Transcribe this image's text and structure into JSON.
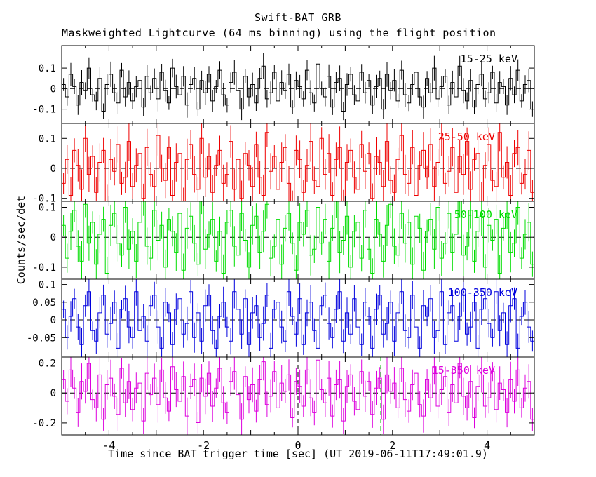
{
  "chart_data": {
    "type": "line",
    "title": "Swift-BAT GRB",
    "subtitle": "Maskweighted Lightcurve (64 ms binning) using the flight position",
    "xlabel": "Time since BAT trigger time [sec] (UT 2019-06-11T17:49:01.9)",
    "ylabel": "Counts/sec/det",
    "x_range": [
      -5,
      5
    ],
    "x_ticks": [
      -4,
      -2,
      0,
      2,
      4
    ],
    "bin_seconds": 0.064,
    "axis_color": "#000000",
    "background": "#ffffff",
    "panels": [
      {
        "label": "15-25 keV",
        "color": "#000000",
        "ylim": [
          -0.17,
          0.21
        ],
        "yticks": [
          0.1,
          0,
          -0.1
        ],
        "err": 0.045,
        "value_scale": 0.01,
        "values": "2,-4,7,1,-8,3,-1,10,-3,-6,5,-11,2,7,-2,-7,9,-4,3,-6,1,4,-9,6,-2,5,-5,8,-1,-7,10,1,-3,6,-8,2,5,-10,4,-2,7,-6,1,9,-3,-8,3,8,-1,-10,6,-4,2,-7,5,11,-5,-2,8,-6,3,-1,7,-9,4,1,-5,9,-2,-7,12,0,-4,6,-9,3,5,-11,2,7,-3,-6,8,-2,4,-8,1,5,-10,7,-1,4,-6,9,-3,-7,2,8,-4,-9,5,-2,10,-5,1,6,-8,3,-4,11,-1,-6,4,-9,2,7,-5,-2,8,-7,3,1,-8,5,-3,9,-6,2,4,-10"
      },
      {
        "label": "25-50 keV",
        "color": "#ee0000",
        "ylim": [
          -0.11,
          0.15
        ],
        "yticks": [
          0.1,
          0,
          -0.1
        ],
        "err": 0.05,
        "value_scale": 0.01,
        "values": "-5,3,-9,6,1,-7,10,-2,4,-8,2,6,-11,3,-1,8,-5,-3,9,-6,1,5,-10,7,-2,-6,11,0,-4,7,-9,2,5,-12,3,8,-2,-7,10,-3,4,-8,1,6,-5,-2,9,-7,3,-10,5,1,-6,8,-3,-9,12,-1,4,-7,2,7,-5,-11,6,3,-8,1,9,-4,-6,10,-2,5,-9,3,7,-12,2,6,-3,-7,8,-1,5,-10,4,2,-6,9,-4,-8,3,11,-2,-5,7,-9,1,6,-3,8,-6,2,10,-5,-1,7,-8,4,-2,9,-7,3,5,-11,1,8,-4,-6,12,-3,2,-9,5,7,-5,-2,6,-8"
      },
      {
        "label": "50-100 keV",
        "color": "#00dd00",
        "ylim": [
          -0.14,
          0.12
        ],
        "yticks": [
          0.1,
          0,
          -0.1
        ],
        "err": 0.05,
        "value_scale": 0.01,
        "values": "4,-7,2,9,-3,-8,11,-2,5,-9,1,6,-12,4,8,-2,-6,10,-4,2,-8,5,12,-3,-7,9,-1,4,-10,6,2,-5,8,-11,3,7,-2,-9,13,-4,1,6,-8,2,-12,5,9,-3,-6,8,-1,-10,4,7,-5,2,11,-7,-3,6,-9,3,8,-2,-11,5,1,9,-6,-4,10,-2,6,-8,3,12,-5,-1,7,-10,2,5,-7,9,-4,-12,6,1,-8,4,11,-3,-6,8,-2,5,-9,7,3,-11,2,6,-4,10,-7,-2,8,-5,1,12,-6,-3,9,-8,2,7,-10,4,-1,6,-12,3,8,-5,-2,10,-7,1,5,-9"
      },
      {
        "label": "100-350 keV",
        "color": "#0000dd",
        "ylim": [
          -0.105,
          0.115
        ],
        "yticks": [
          0.1,
          0.05,
          0,
          -0.05
        ],
        "err": 0.035,
        "value_scale": 0.01,
        "values": "3,-5,1,6,-2,-7,4,8,-3,-6,2,7,-4,-1,5,-8,3,6,-2,-5,8,-3,1,-6,4,7,-2,-8,5,2,-7,3,6,-4,-1,8,-5,2,-6,4,7,-3,-8,1,5,-2,-6,8,3,-4,6,-7,2,4,-5,-1,7,-8,3,5,-2,-6,8,1,-4,6,-7,2,5,-3,-8,4,7,-1,-5,3,8,-6,2,-4,6,-2,-7,5,1,-8,3,7,-4,-1,5,-6,2,8,-3,-5,7,-2,-8,4,1,6,-5,-3,8,-7,2,4,-6,1,7,-4,-2,5,-8,3,6,-1,-5,8,-3,2,-7,4,6,-8,1,5,-2,-6"
      },
      {
        "label": "15-350 keV",
        "color": "#dd00dd",
        "ylim": [
          -0.28,
          0.24
        ],
        "yticks": [
          0.2,
          0,
          -0.2
        ],
        "err": 0.09,
        "value_scale": 0.011,
        "values": "8,-5,14,3,-12,7,1,18,-4,-9,11,-16,5,9,-2,-13,15,-6,7,-10,3,6,-17,12,-1,9,-7,14,-3,-11,16,2,-5,10,-14,4,8,-18,9,-2,12,-8,3,15,-6,-12,7,13,-1,-16,10,-4,5,-11,8,19,-7,-2,13,-9,6,1,11,-15,7,4,-8,14,-3,-12,20,2,-6,9,-14,5,8,-17,4,11,-5,-10,13,-2,7,-13,3,9,-16,11,1,6,-9,15,-4,-11,5,12,-7,-14,8,-3,16,-8,2,10,-12,5,-6,18,-2,-9,7,-15,4,11,-8,-3,13,-10,6,2,-12,8,-5,14,-9,3,7,-16",
        "vlines": [
          {
            "x": 0,
            "color": "#000000"
          },
          {
            "x": 1.75,
            "color": "#00bb00"
          }
        ]
      }
    ]
  }
}
